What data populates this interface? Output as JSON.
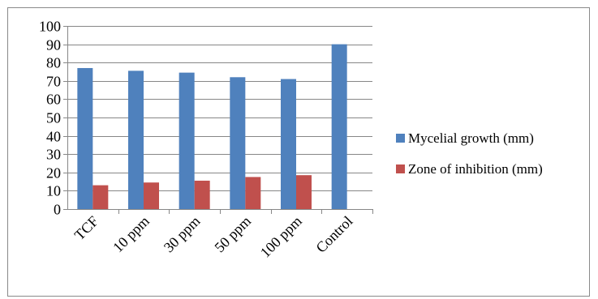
{
  "chart_data": {
    "type": "bar",
    "categories": [
      "TCF",
      "10 ppm",
      "30 ppm",
      "50 ppm",
      "100 ppm",
      "Control"
    ],
    "series": [
      {
        "name": "Mycelial growth (mm)",
        "color": "#4f81bd",
        "values": [
          77,
          75.5,
          74.5,
          72,
          71,
          90
        ]
      },
      {
        "name": "Zone of inhibition (mm)",
        "color": "#c0504d",
        "values": [
          13,
          14.5,
          15.5,
          17.5,
          18.5,
          0
        ]
      }
    ],
    "title": "",
    "xlabel": "",
    "ylabel": "",
    "ylim": [
      0,
      100
    ],
    "yticks": [
      "0",
      "10",
      "20",
      "30",
      "40",
      "50",
      "60",
      "70",
      "80",
      "90",
      "100"
    ],
    "grid": true,
    "legend_position": "right"
  }
}
